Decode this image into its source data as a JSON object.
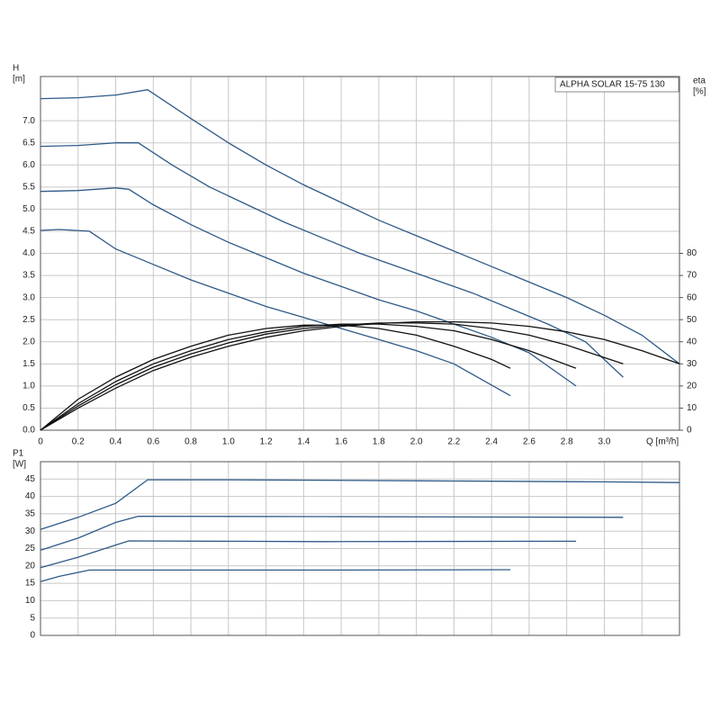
{
  "chart_data": [
    {
      "type": "line",
      "title": "ALPHA SOLAR 15-75  130",
      "y_label": "H",
      "y_unit": "[m]",
      "y2_label": "eta",
      "y2_unit": "[%]",
      "x_label": "Q [m³/h]",
      "xlim": [
        0,
        3.4
      ],
      "xticks": [
        0,
        0.2,
        0.4,
        0.6,
        0.8,
        {
          "value": 1,
          "label": "1.0"
        },
        1.2,
        1.4,
        1.6,
        1.8,
        {
          "value": 2,
          "label": "2.0"
        },
        2.2,
        2.4,
        2.6,
        2.8,
        {
          "value": 3,
          "label": "3.0"
        }
      ],
      "xtick_labels": true,
      "ylim": [
        0,
        8
      ],
      "yticks": [
        {
          "value": 0,
          "label": "0.0"
        },
        0.5,
        {
          "value": 1,
          "label": "1.0"
        },
        1.5,
        {
          "value": 2,
          "label": "2.0"
        },
        2.5,
        {
          "value": 3,
          "label": "3.0"
        },
        3.5,
        {
          "value": 4,
          "label": "4.0"
        },
        4.5,
        {
          "value": 5,
          "label": "5.0"
        },
        5.5,
        {
          "value": 6,
          "label": "6.0"
        },
        6.5,
        {
          "value": 7,
          "label": "7.0"
        }
      ],
      "y2lim": [
        0,
        160
      ],
      "y2ticks": [
        0,
        10,
        20,
        30,
        40,
        50,
        60,
        70,
        80
      ],
      "grid": true,
      "series": [
        {
          "color": "#2e5a87",
          "x": [
            0,
            0.2,
            0.4,
            0.57,
            0.8,
            1.0,
            1.2,
            1.4,
            1.6,
            1.8,
            2.0,
            2.2,
            2.4,
            2.6,
            2.8,
            3.0,
            3.2,
            3.4
          ],
          "values": [
            7.5,
            7.52,
            7.58,
            7.7,
            7.05,
            6.5,
            6.0,
            5.55,
            5.15,
            4.75,
            4.4,
            4.05,
            3.7,
            3.35,
            3.0,
            2.6,
            2.15,
            1.5
          ]
        },
        {
          "color": "#2e5a87",
          "x": [
            0,
            0.2,
            0.4,
            0.52,
            0.7,
            0.9,
            1.1,
            1.3,
            1.5,
            1.7,
            1.9,
            2.1,
            2.3,
            2.5,
            2.7,
            2.9,
            3.1
          ],
          "values": [
            6.42,
            6.44,
            6.5,
            6.5,
            6.0,
            5.5,
            5.1,
            4.7,
            4.35,
            4.0,
            3.7,
            3.4,
            3.1,
            2.75,
            2.4,
            2.0,
            1.2
          ]
        },
        {
          "color": "#2e5a87",
          "x": [
            0,
            0.2,
            0.4,
            0.47,
            0.6,
            0.8,
            1.0,
            1.2,
            1.4,
            1.6,
            1.8,
            2.0,
            2.2,
            2.4,
            2.6,
            2.85
          ],
          "values": [
            5.4,
            5.42,
            5.48,
            5.45,
            5.1,
            4.65,
            4.25,
            3.9,
            3.55,
            3.25,
            2.95,
            2.7,
            2.4,
            2.1,
            1.75,
            1.0
          ]
        },
        {
          "color": "#2e5a87",
          "x": [
            0,
            0.1,
            0.26,
            0.4,
            0.6,
            0.8,
            1.0,
            1.2,
            1.4,
            1.6,
            1.8,
            2.0,
            2.2,
            2.5
          ],
          "values": [
            4.52,
            4.54,
            4.5,
            4.1,
            3.75,
            3.4,
            3.1,
            2.8,
            2.55,
            2.3,
            2.05,
            1.8,
            1.5,
            0.78
          ]
        },
        {
          "color": "#111111",
          "axis": "y2",
          "x": [
            0,
            0.2,
            0.4,
            0.6,
            0.8,
            1.0,
            1.2,
            1.4,
            1.6,
            1.8,
            2.0,
            2.2,
            2.4,
            2.6,
            2.8,
            3.0,
            3.2,
            3.4
          ],
          "values": [
            0,
            10,
            19,
            27,
            33,
            38,
            42,
            45,
            47,
            48.3,
            49,
            49,
            48.5,
            47,
            44.5,
            41,
            36,
            30
          ]
        },
        {
          "color": "#111111",
          "axis": "y2",
          "x": [
            0,
            0.2,
            0.4,
            0.6,
            0.8,
            1.0,
            1.2,
            1.4,
            1.6,
            1.8,
            2.0,
            2.2,
            2.4,
            2.6,
            2.8,
            3.1
          ],
          "values": [
            0,
            11,
            20.5,
            28.5,
            34.5,
            39.5,
            43.5,
            46,
            47.5,
            48.5,
            48.5,
            48,
            46,
            43,
            38.5,
            30
          ]
        },
        {
          "color": "#111111",
          "axis": "y2",
          "x": [
            0,
            0.2,
            0.4,
            0.6,
            0.8,
            1.0,
            1.2,
            1.4,
            1.6,
            1.8,
            2.0,
            2.2,
            2.4,
            2.6,
            2.85
          ],
          "values": [
            0,
            12,
            22,
            30,
            36,
            41,
            44.5,
            47,
            48,
            48,
            47,
            45,
            41,
            36,
            28
          ]
        },
        {
          "color": "#111111",
          "axis": "y2",
          "x": [
            0,
            0.2,
            0.4,
            0.6,
            0.8,
            1.0,
            1.2,
            1.4,
            1.6,
            1.8,
            2.0,
            2.2,
            2.4,
            2.5
          ],
          "values": [
            0,
            14,
            24,
            32,
            38,
            43,
            46,
            47.5,
            47.5,
            46,
            43,
            38,
            32,
            28
          ]
        }
      ]
    },
    {
      "type": "line",
      "y_label": "P1",
      "y_unit": "[W]",
      "xlim": [
        0,
        3.4
      ],
      "xticks": [
        0,
        0.2,
        0.4,
        0.6,
        0.8,
        1,
        1.2,
        1.4,
        1.6,
        1.8,
        2,
        2.2,
        2.4,
        2.6,
        2.8,
        3,
        3.2
      ],
      "xtick_labels": false,
      "ylim": [
        0,
        50
      ],
      "yticks": [
        0,
        5,
        10,
        15,
        20,
        25,
        30,
        35,
        40,
        45
      ],
      "grid": true,
      "series": [
        {
          "color": "#2e5a87",
          "x": [
            0,
            0.2,
            0.4,
            0.57,
            1.0,
            2.0,
            3.0,
            3.4
          ],
          "values": [
            30.5,
            34,
            38,
            44.8,
            44.8,
            44.5,
            44.2,
            44
          ]
        },
        {
          "color": "#2e5a87",
          "x": [
            0,
            0.2,
            0.4,
            0.52,
            1.5,
            3.1
          ],
          "values": [
            24.5,
            28,
            32.5,
            34.3,
            34.2,
            34
          ]
        },
        {
          "color": "#2e5a87",
          "x": [
            0,
            0.2,
            0.4,
            0.47,
            1.5,
            2.85
          ],
          "values": [
            19.5,
            22.5,
            26,
            27.2,
            27,
            27.1
          ]
        },
        {
          "color": "#2e5a87",
          "x": [
            0,
            0.1,
            0.26,
            1.5,
            2.5
          ],
          "values": [
            15.5,
            17,
            18.8,
            18.8,
            18.9
          ]
        }
      ]
    }
  ]
}
